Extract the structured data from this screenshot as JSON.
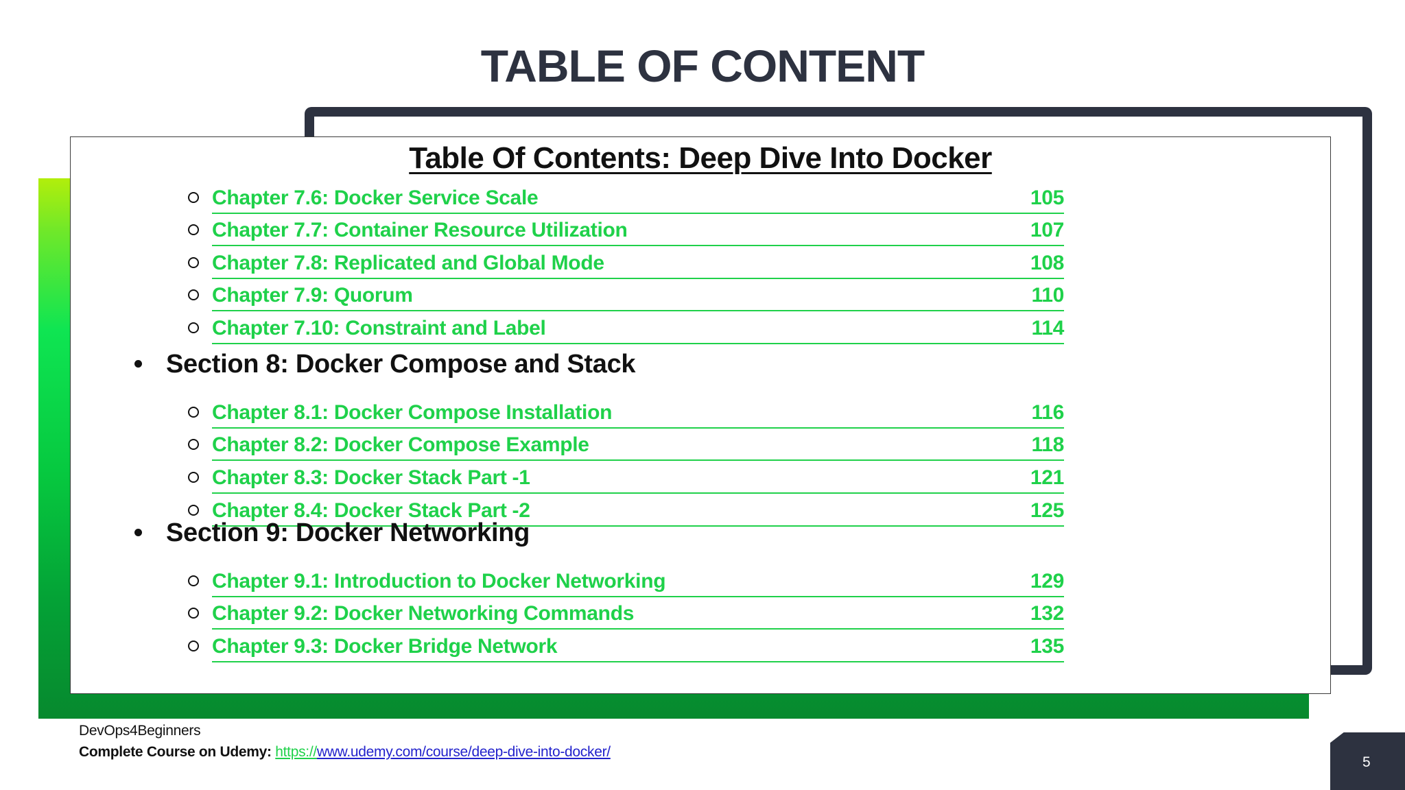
{
  "slide": {
    "title": "TABLE OF CONTENT",
    "page_number": "5"
  },
  "card": {
    "title": "Table Of Contents: Deep Dive Into Docker",
    "entries": [
      {
        "type": "chapter",
        "label": "Chapter 7.6: Docker Service Scale",
        "page": "105"
      },
      {
        "type": "chapter",
        "label": "Chapter 7.7: Container Resource Utilization",
        "page": "107"
      },
      {
        "type": "chapter",
        "label": "Chapter 7.8: Replicated and Global Mode",
        "page": "108"
      },
      {
        "type": "chapter",
        "label": "Chapter 7.9: Quorum",
        "page": "110"
      },
      {
        "type": "chapter",
        "label": "Chapter 7.10: Constraint and Label",
        "page": "114"
      },
      {
        "type": "section",
        "label": "Section 8: Docker Compose and Stack"
      },
      {
        "type": "chapter",
        "label": "Chapter 8.1: Docker Compose Installation",
        "page": "116"
      },
      {
        "type": "chapter",
        "label": "Chapter 8.2: Docker Compose Example",
        "page": "118"
      },
      {
        "type": "chapter",
        "label": "Chapter 8.3: Docker Stack Part -1",
        "page": "121"
      },
      {
        "type": "chapter",
        "label": "Chapter 8.4: Docker Stack Part -2",
        "page": "125"
      },
      {
        "type": "section",
        "label": "Section 9: Docker Networking"
      },
      {
        "type": "chapter",
        "label": "Chapter 9.1: Introduction to Docker Networking",
        "page": "129"
      },
      {
        "type": "chapter",
        "label": "Chapter 9.2: Docker Networking Commands",
        "page": "132"
      },
      {
        "type": "chapter",
        "label": "Chapter 9.3: Docker Bridge Network",
        "page": "135"
      }
    ]
  },
  "footer": {
    "brand": "DevOps4Beginners",
    "course_label": "Complete Course on Udemy:",
    "url_prefix": "https://",
    "url_rest": "www.udemy.com/course/deep-dive-into-docker/"
  },
  "colors": {
    "accent_green": "#1fd14a",
    "dark_navy": "#2d3240",
    "link_blue": "#2222cc"
  }
}
